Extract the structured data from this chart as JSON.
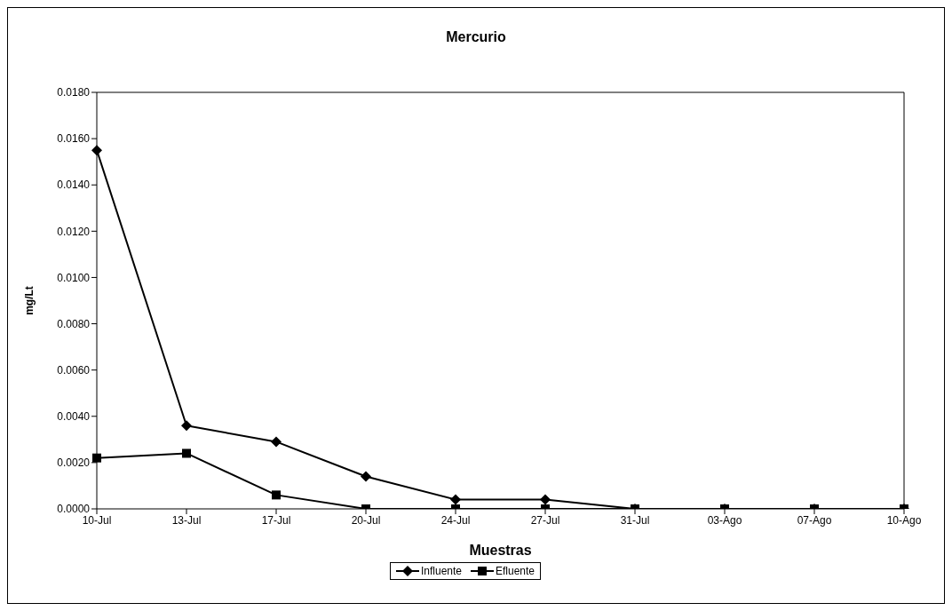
{
  "chart_data": {
    "type": "line",
    "title": "Mercurio",
    "xlabel": "Muestras",
    "ylabel": "mg/Lt",
    "categories": [
      "10-Jul",
      "13-Jul",
      "17-Jul",
      "20-Jul",
      "24-Jul",
      "27-Jul",
      "31-Jul",
      "03-Ago",
      "07-Ago",
      "10-Ago"
    ],
    "series": [
      {
        "name": "Influente",
        "color": "#000000",
        "marker": "diamond",
        "values": [
          0.0155,
          0.0036,
          0.0029,
          0.0014,
          0.0004,
          0.0004,
          0.0,
          0.0,
          0.0,
          0.0
        ]
      },
      {
        "name": "Efluente",
        "color": "#000000",
        "marker": "square",
        "values": [
          0.0022,
          0.0024,
          0.0006,
          0.0,
          0.0,
          0.0,
          0.0,
          0.0,
          0.0,
          0.0
        ]
      }
    ],
    "ylim": [
      0,
      0.018
    ],
    "yticks": [
      {
        "value": 0,
        "label": "0.0000"
      },
      {
        "value": 0.002,
        "label": "0.0020"
      },
      {
        "value": 0.004,
        "label": "0.0040"
      },
      {
        "value": 0.006,
        "label": "0.0060"
      },
      {
        "value": 0.008,
        "label": "0.0080"
      },
      {
        "value": 0.01,
        "label": "0.0100"
      },
      {
        "value": 0.012,
        "label": "0.0120"
      },
      {
        "value": 0.014,
        "label": "0.0140"
      },
      {
        "value": 0.016,
        "label": "0.0160"
      },
      {
        "value": 0.018,
        "label": "0.0180"
      }
    ],
    "grid": false,
    "legend": "bottom",
    "line_style": "solid"
  }
}
